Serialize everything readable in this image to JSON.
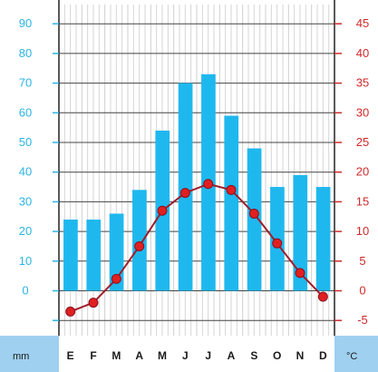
{
  "chart_data": {
    "type": "bar",
    "title": "",
    "categories": [
      "E",
      "F",
      "M",
      "A",
      "M",
      "J",
      "J",
      "A",
      "S",
      "O",
      "N",
      "D"
    ],
    "series": [
      {
        "type": "bar",
        "axis": "left",
        "color": "#1fb8ee",
        "values": [
          24,
          24,
          26,
          34,
          54,
          70,
          73,
          59,
          48,
          35,
          39,
          35
        ]
      },
      {
        "type": "line",
        "axis": "right",
        "color": "#a01c2a",
        "marker_color": "#e02020",
        "values": [
          -3.5,
          -2,
          2,
          7.5,
          13.5,
          16.5,
          18,
          17,
          13,
          8,
          3,
          -1
        ]
      }
    ],
    "y_left": {
      "unit": "mm",
      "range": [
        -10,
        92
      ],
      "ticks": [
        0,
        10,
        20,
        30,
        40,
        50,
        60,
        70,
        80,
        90
      ],
      "color": "#2bb5e6"
    },
    "y_right": {
      "unit": "°C",
      "range": [
        -5,
        46
      ],
      "ticks": [
        -5,
        0,
        5,
        10,
        15,
        20,
        25,
        30,
        35,
        40,
        45
      ],
      "color": "#d12a2a"
    },
    "grid": true,
    "footer_color": "#9fd0f0"
  }
}
